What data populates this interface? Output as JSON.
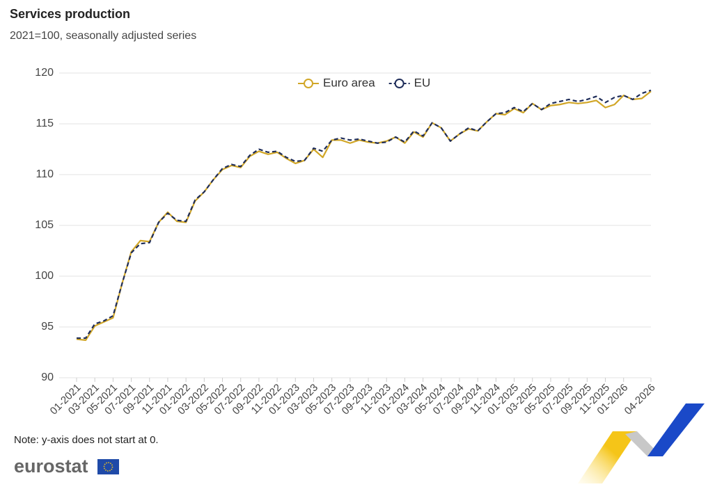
{
  "chart_data": {
    "type": "line",
    "title": "Services production",
    "subtitle": "2021=100, seasonally adjusted series",
    "note": "Note: y-axis does not start at 0.",
    "logo": "eurostat",
    "legend": "top",
    "grid": true,
    "ylim": [
      90,
      120
    ],
    "yticks": [
      90,
      95,
      100,
      105,
      110,
      115,
      120
    ],
    "categories": [
      "01-2021",
      null,
      "03-2021",
      null,
      "05-2021",
      null,
      "07-2021",
      null,
      "09-2021",
      null,
      "11-2021",
      null,
      "01-2022",
      null,
      "03-2022",
      null,
      "05-2022",
      null,
      "07-2022",
      null,
      "09-2022",
      null,
      "11-2022",
      null,
      "01-2023",
      null,
      "03-2023",
      null,
      "05-2023",
      null,
      "07-2023",
      null,
      "09-2023",
      null,
      "11-2023",
      null,
      "01-2024",
      null,
      "03-2024",
      null,
      "05-2024",
      null,
      "07-2024",
      null,
      "09-2024",
      null,
      "11-2024",
      null,
      "01-2025",
      null,
      "03-2025",
      null,
      "05-2025",
      null,
      "07-2025",
      null,
      "09-2025",
      null,
      "11-2025",
      null,
      "01-2026",
      null,
      null,
      "04-2026"
    ],
    "series": [
      {
        "name": "Euro area",
        "color": "#d1a626",
        "style": "solid",
        "values": [
          93.8,
          93.7,
          95.1,
          95.5,
          95.9,
          99.3,
          102.4,
          103.5,
          103.4,
          105.3,
          106.3,
          105.4,
          105.3,
          107.4,
          108.3,
          109.5,
          110.5,
          110.9,
          110.7,
          111.8,
          112.3,
          112.0,
          112.2,
          111.6,
          111.1,
          111.4,
          112.5,
          111.7,
          113.4,
          113.4,
          113.1,
          113.4,
          113.2,
          113.1,
          113.3,
          113.7,
          113.1,
          114.2,
          113.7,
          115.1,
          114.6,
          113.3,
          114.0,
          114.5,
          114.3,
          115.2,
          116.0,
          115.9,
          116.5,
          116.1,
          117.0,
          116.4,
          116.8,
          116.9,
          117.1,
          117.0,
          117.1,
          117.3,
          116.6,
          116.9,
          117.8,
          117.4,
          117.5,
          118.2
        ]
      },
      {
        "name": "EU",
        "color": "#1f2d5a",
        "style": "dashed",
        "values": [
          93.9,
          93.9,
          95.3,
          95.6,
          96.1,
          99.3,
          102.3,
          103.2,
          103.3,
          105.3,
          106.2,
          105.5,
          105.4,
          107.5,
          108.3,
          109.5,
          110.6,
          111.0,
          110.8,
          111.9,
          112.5,
          112.2,
          112.3,
          111.7,
          111.3,
          111.4,
          112.6,
          112.3,
          113.4,
          113.6,
          113.4,
          113.5,
          113.3,
          113.1,
          113.2,
          113.7,
          113.2,
          114.3,
          113.8,
          115.1,
          114.6,
          113.3,
          114.0,
          114.6,
          114.3,
          115.2,
          116.0,
          116.1,
          116.6,
          116.2,
          117.0,
          116.4,
          117.0,
          117.2,
          117.4,
          117.2,
          117.4,
          117.7,
          117.1,
          117.6,
          117.8,
          117.4,
          118.0,
          118.3
        ]
      }
    ]
  }
}
